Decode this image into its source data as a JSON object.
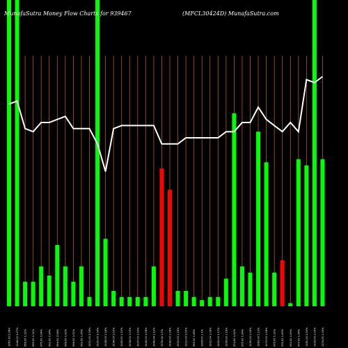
{
  "chart_data": {
    "type": "bar",
    "title_left": "MunafaSutra  Money Flow  Charts for 939467",
    "title_right": "(MFCL30424D) MunafaSutra.com",
    "xlabel": "",
    "ylabel": "",
    "grid": true,
    "colors": {
      "background": "#000000",
      "grid": "#b45f06",
      "up": "#00ff00",
      "down": "#ff0000",
      "line": "#ffffff",
      "text": "#ffffff"
    },
    "categories": [
      "1067.39 2.08%",
      "1144.00 1.07%",
      "956.00 1.11%",
      "999.00 1.11%",
      "975.00 2.04%",
      "992.00 1.04%",
      "994.00 2.04%",
      "996.00 1.02%",
      "996.00 1.02%",
      "993.50 1.05%",
      "1021.00 3.06%",
      "1020.00 3.04%",
      "1028.00 1.18%",
      "1034.00 1.02%",
      "1049.00 1.12%",
      "1034.00 1.03%",
      "1037.00 1.02%",
      "1042.00 1.08%",
      "1049.04 1.12%",
      "1039.04 1.0%",
      "1043.00 1.06%",
      "1002.00 1.15%",
      "1012.00 1.02%",
      "995.00 1.08%",
      "1004.00 1.1%",
      "1001.04 1.06%",
      "1000.00 1.17%",
      "1005.00 1.15%",
      "974.00 1.02%",
      "975.00 1.04%",
      "1050.00 1.05%",
      "1063.00 1.13%",
      "1072.00 1.06%",
      "975.00 1.11%",
      "975.00 1.05%",
      "930.00 1.05%",
      "977.00 1.04%",
      "1181.00 1.00%",
      "1116.00 1.00%",
      "1174.00 1.00%"
    ],
    "values": [
      100,
      100,
      8,
      8,
      13,
      10,
      20,
      13,
      8,
      13,
      3,
      100,
      22,
      5,
      3,
      3,
      3,
      3,
      13,
      45,
      38,
      5,
      5,
      3,
      2,
      3,
      3,
      9,
      63,
      13,
      11,
      57,
      47,
      11,
      15,
      1,
      48,
      46,
      100,
      48
    ],
    "direction": [
      "up",
      "up",
      "up",
      "up",
      "up",
      "up",
      "up",
      "up",
      "up",
      "up",
      "up",
      "up",
      "up",
      "up",
      "up",
      "up",
      "up",
      "up",
      "up",
      "down",
      "down",
      "up",
      "up",
      "up",
      "up",
      "up",
      "up",
      "up",
      "up",
      "up",
      "up",
      "up",
      "up",
      "up",
      "down",
      "up",
      "up",
      "up",
      "up",
      "up"
    ],
    "price_line": [
      66,
      67,
      58,
      57,
      60,
      60,
      61,
      62,
      58,
      58,
      58,
      53,
      44,
      58,
      59,
      59,
      59,
      59,
      59,
      53,
      53,
      53,
      55,
      55,
      55,
      55,
      55,
      57,
      57,
      60,
      60,
      65,
      61,
      59,
      57,
      60,
      57,
      74,
      73,
      75
    ],
    "ylim": [
      0,
      100
    ]
  }
}
